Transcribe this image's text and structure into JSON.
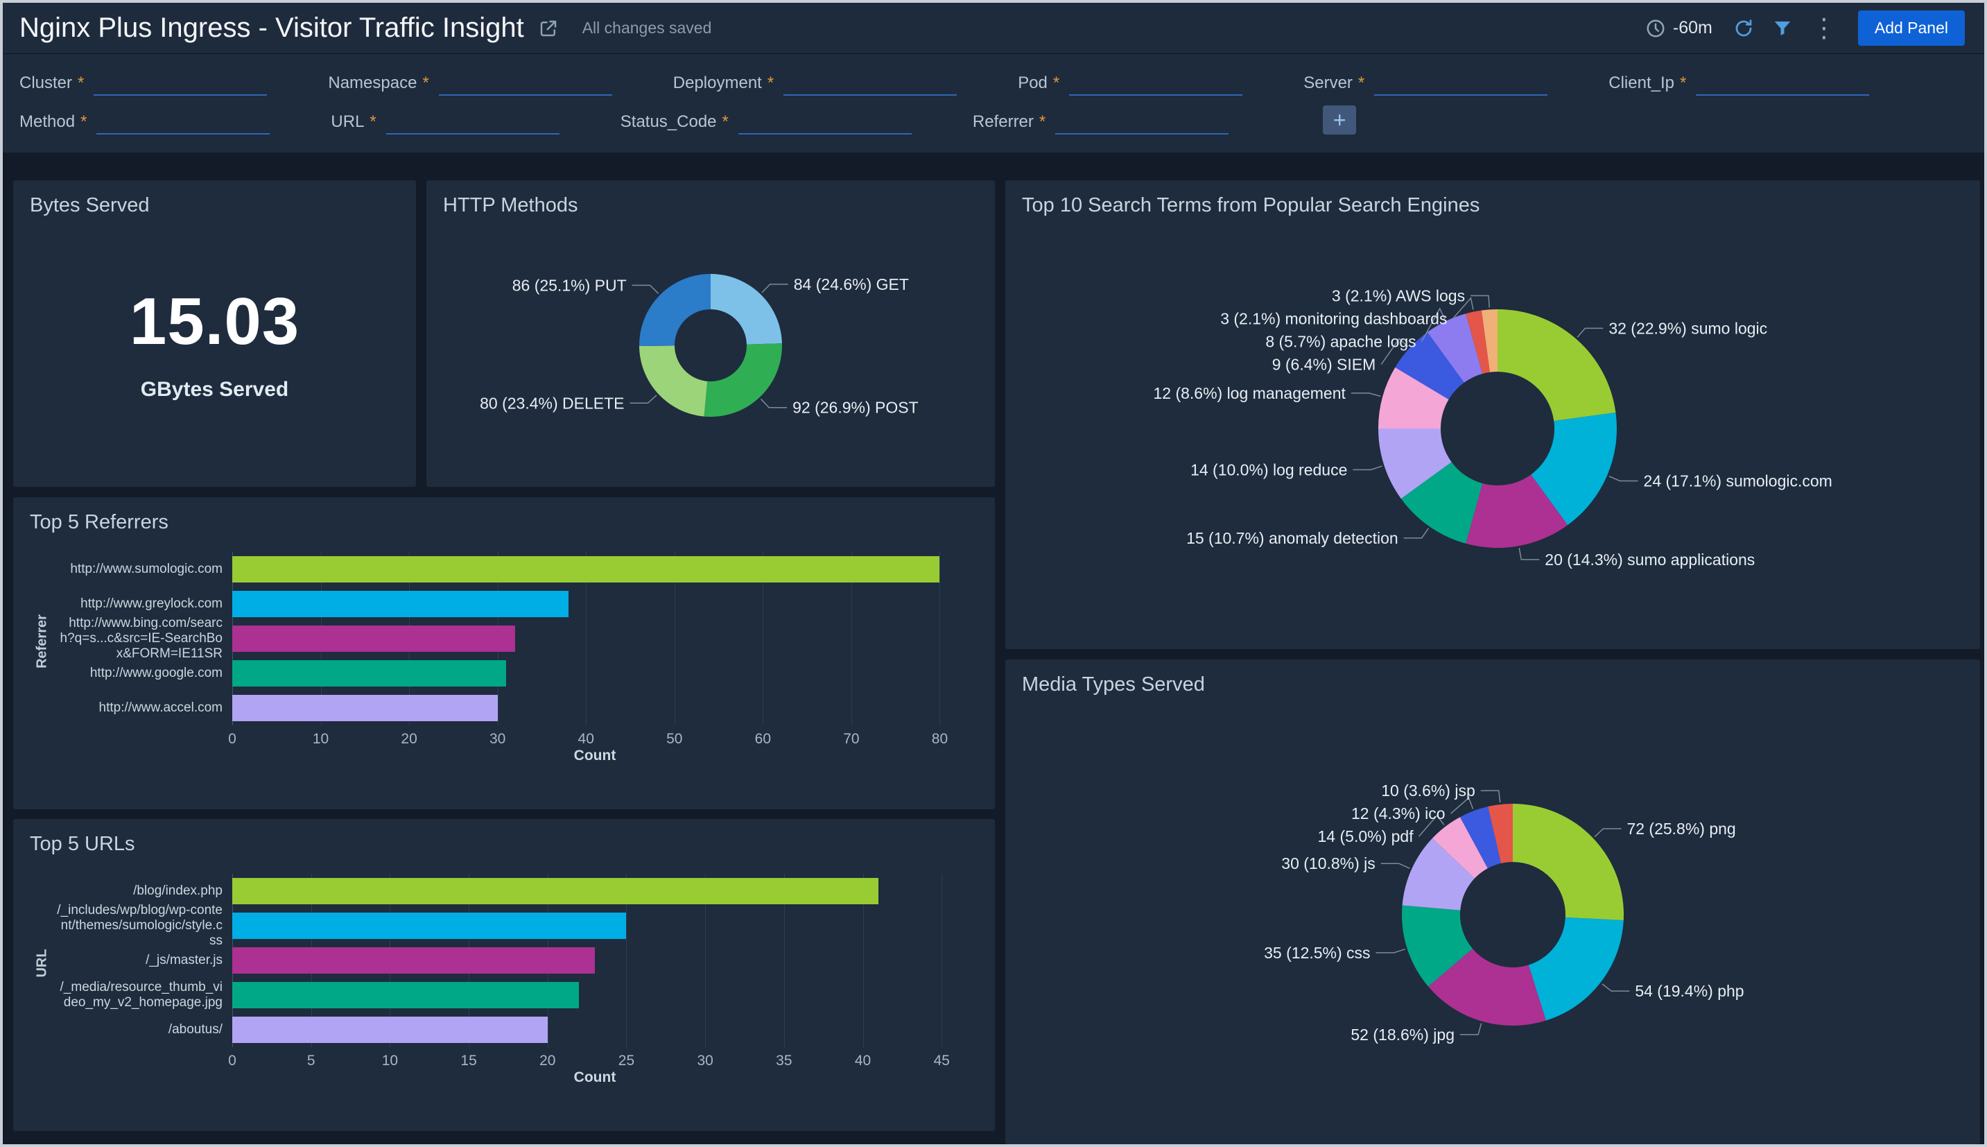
{
  "header": {
    "title": "Nginx Plus Ingress - Visitor Traffic Insight",
    "saved_status": "All changes saved",
    "time_range": "-60m",
    "add_panel_label": "Add Panel"
  },
  "filters": {
    "required_marker": "*",
    "add_filter_label": "+",
    "row1": [
      {
        "label": "Cluster",
        "value": ""
      },
      {
        "label": "Namespace",
        "value": ""
      },
      {
        "label": "Deployment",
        "value": ""
      },
      {
        "label": "Pod",
        "value": ""
      },
      {
        "label": "Server",
        "value": ""
      },
      {
        "label": "Client_Ip",
        "value": ""
      }
    ],
    "row2": [
      {
        "label": "Method",
        "value": ""
      },
      {
        "label": "URL",
        "value": ""
      },
      {
        "label": "Status_Code",
        "value": ""
      },
      {
        "label": "Referrer",
        "value": ""
      }
    ]
  },
  "panels": {
    "bytes_served": {
      "title": "Bytes Served",
      "value": "15.03",
      "unit": "GBytes Served"
    }
  },
  "chart_data": [
    {
      "type": "pie",
      "donut": true,
      "title": "HTTP Methods",
      "slices": [
        {
          "label": "GET",
          "value": 84,
          "pct": "24.6",
          "color": "#7dc1e8"
        },
        {
          "label": "POST",
          "value": 92,
          "pct": "26.9",
          "color": "#2fae54"
        },
        {
          "label": "DELETE",
          "value": 80,
          "pct": "23.4",
          "color": "#9bd479"
        },
        {
          "label": "PUT",
          "value": 86,
          "pct": "25.1",
          "color": "#2b7cc9"
        }
      ]
    },
    {
      "type": "pie",
      "donut": true,
      "title": "Top 10 Search Terms from Popular Search Engines",
      "slices": [
        {
          "label": "sumo logic",
          "value": 32,
          "pct": "22.9",
          "color": "#99cc33"
        },
        {
          "label": "sumologic.com",
          "value": 24,
          "pct": "17.1",
          "color": "#00b1d8"
        },
        {
          "label": "sumo applications",
          "value": 20,
          "pct": "14.3",
          "color": "#ad3192"
        },
        {
          "label": "anomaly detection",
          "value": 15,
          "pct": "10.7",
          "color": "#00a887"
        },
        {
          "label": "log reduce",
          "value": 14,
          "pct": "10.0",
          "color": "#b2a4f4"
        },
        {
          "label": "log management",
          "value": 12,
          "pct": "8.6",
          "color": "#f4a6d7"
        },
        {
          "label": "SIEM",
          "value": 9,
          "pct": "6.4",
          "color": "#3c5ae0"
        },
        {
          "label": "apache logs",
          "value": 8,
          "pct": "5.7",
          "color": "#8d7cf0"
        },
        {
          "label": "monitoring dashboards",
          "value": 3,
          "pct": "2.1",
          "color": "#e4564a"
        },
        {
          "label": "AWS logs",
          "value": 3,
          "pct": "2.1",
          "color": "#f0b077"
        }
      ]
    },
    {
      "type": "pie",
      "donut": true,
      "title": "Media Types Served",
      "slices": [
        {
          "label": "png",
          "value": 72,
          "pct": "25.8",
          "color": "#99cc33"
        },
        {
          "label": "php",
          "value": 54,
          "pct": "19.4",
          "color": "#00b1d8"
        },
        {
          "label": "jpg",
          "value": 52,
          "pct": "18.6",
          "color": "#ad3192"
        },
        {
          "label": "css",
          "value": 35,
          "pct": "12.5",
          "color": "#00a887"
        },
        {
          "label": "js",
          "value": 30,
          "pct": "10.8",
          "color": "#b2a4f4"
        },
        {
          "label": "pdf",
          "value": 14,
          "pct": "5.0",
          "color": "#f4a6d7"
        },
        {
          "label": "ico",
          "value": 12,
          "pct": "4.3",
          "color": "#3c5ae0"
        },
        {
          "label": "jsp",
          "value": 10,
          "pct": "3.6",
          "color": "#e4564a"
        }
      ]
    },
    {
      "type": "bar",
      "orientation": "horizontal",
      "title": "Top 5 Referrers",
      "categories": [
        "http://www.sumologic.com",
        "http://www.greylock.com",
        "http://www.bing.com/search?q=s...c&src=IE-SearchBox&FORM=IE11SR",
        "http://www.google.com",
        "http://www.accel.com"
      ],
      "values": [
        80,
        38,
        32,
        31,
        30
      ],
      "colors": [
        "#99cc33",
        "#00aee6",
        "#ad3192",
        "#00a887",
        "#b2a4f4"
      ],
      "xlabel": "Count",
      "ylabel": "Referrer",
      "ticks": [
        0,
        10,
        20,
        30,
        40,
        50,
        60,
        70,
        80
      ],
      "xmax": 82
    },
    {
      "type": "bar",
      "orientation": "horizontal",
      "title": "Top 5 URLs",
      "categories": [
        "/blog/index.php",
        "/_includes/wp/blog/wp-content/themes/sumologic/style.css",
        "/_js/master.js",
        "/_media/resource_thumb_video_my_v2_homepage.jpg",
        "/aboutus/"
      ],
      "values": [
        41,
        25,
        23,
        22,
        20
      ],
      "colors": [
        "#99cc33",
        "#00aee6",
        "#ad3192",
        "#00a887",
        "#b2a4f4"
      ],
      "xlabel": "Count",
      "ylabel": "URL",
      "ticks": [
        0,
        5,
        10,
        15,
        20,
        25,
        30,
        35,
        40,
        45
      ],
      "xmax": 46
    }
  ]
}
